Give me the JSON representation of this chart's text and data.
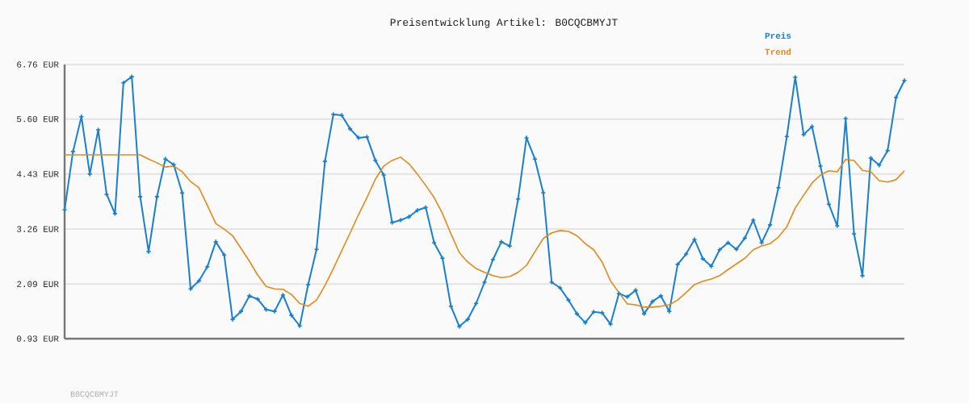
{
  "chart_data": {
    "type": "line",
    "title": "Preisentwicklung Artikel: B0CQCBMYJT",
    "categories": [
      null,
      null,
      null,
      null,
      null,
      null,
      null,
      null,
      null,
      null,
      null,
      null,
      null,
      null,
      null,
      null,
      null,
      null,
      null,
      null,
      null,
      null,
      null,
      null,
      null,
      null,
      null,
      null,
      null,
      null,
      null,
      null,
      null,
      null,
      null,
      null,
      null,
      null,
      null,
      null,
      null,
      null,
      null,
      null,
      null,
      null,
      null,
      null,
      null,
      null,
      null,
      null,
      null,
      null,
      null,
      null,
      null,
      null,
      null,
      null,
      null,
      null,
      null,
      null,
      null,
      null,
      null,
      null,
      null,
      null,
      null,
      null,
      null,
      null,
      null,
      null,
      null,
      null,
      null,
      null,
      null,
      null,
      null,
      null,
      null,
      null,
      null,
      null,
      null,
      null,
      null,
      null,
      null,
      null,
      null,
      null,
      null,
      null,
      null,
      null,
      null
    ],
    "series": [
      {
        "name": "Preis",
        "color": "#1a7fcc",
        "marker": "cross",
        "values": [
          3.67,
          4.91,
          5.65,
          4.43,
          5.37,
          4.0,
          3.59,
          6.37,
          6.5,
          3.95,
          2.78,
          3.95,
          4.75,
          4.63,
          4.03,
          1.99,
          2.16,
          2.46,
          2.99,
          2.71,
          1.34,
          1.51,
          1.84,
          1.77,
          1.55,
          1.51,
          1.86,
          1.43,
          1.2,
          2.08,
          2.83,
          4.7,
          5.7,
          5.68,
          5.39,
          5.2,
          5.22,
          4.72,
          4.41,
          3.4,
          3.45,
          3.52,
          3.66,
          3.72,
          2.97,
          2.64,
          1.62,
          1.19,
          1.34,
          1.68,
          2.13,
          2.61,
          2.99,
          2.9,
          3.9,
          5.2,
          4.75,
          4.03,
          2.13,
          2.01,
          1.75,
          1.46,
          1.27,
          1.5,
          1.48,
          1.24,
          1.89,
          1.82,
          1.96,
          1.46,
          1.72,
          1.84,
          1.51,
          2.51,
          2.73,
          3.04,
          2.63,
          2.47,
          2.82,
          2.97,
          2.83,
          3.07,
          3.45,
          2.97,
          3.35,
          4.14,
          5.23,
          6.49,
          5.27,
          5.44,
          4.6,
          3.79,
          3.33,
          5.61,
          3.16,
          2.27,
          4.77,
          4.62,
          4.93,
          6.06,
          6.42
        ]
      },
      {
        "name": "Trend",
        "color": "#e08a1e",
        "marker": "none",
        "values": [
          4.84,
          4.84,
          4.84,
          4.84,
          4.84,
          4.84,
          4.84,
          4.84,
          4.84,
          4.84,
          4.75,
          4.67,
          4.58,
          4.6,
          4.48,
          4.27,
          4.14,
          3.76,
          3.38,
          3.26,
          3.12,
          2.85,
          2.58,
          2.28,
          2.04,
          1.99,
          1.98,
          1.87,
          1.68,
          1.62,
          1.75,
          2.06,
          2.42,
          2.8,
          3.18,
          3.57,
          3.93,
          4.32,
          4.6,
          4.72,
          4.79,
          4.65,
          4.43,
          4.19,
          3.93,
          3.59,
          3.16,
          2.76,
          2.56,
          2.42,
          2.34,
          2.27,
          2.23,
          2.25,
          2.34,
          2.49,
          2.78,
          3.06,
          3.18,
          3.23,
          3.21,
          3.12,
          2.95,
          2.82,
          2.56,
          2.16,
          1.91,
          1.67,
          1.65,
          1.6,
          1.6,
          1.62,
          1.65,
          1.75,
          1.91,
          2.08,
          2.15,
          2.2,
          2.27,
          2.4,
          2.52,
          2.64,
          2.82,
          2.9,
          2.95,
          3.09,
          3.31,
          3.71,
          3.98,
          4.24,
          4.41,
          4.5,
          4.48,
          4.74,
          4.72,
          4.51,
          4.48,
          4.29,
          4.26,
          4.31,
          4.5
        ]
      }
    ],
    "ylim": [
      0.93,
      6.76
    ],
    "yticks": [
      {
        "value": 0.93,
        "label": "0.93 EUR"
      },
      {
        "value": 2.09,
        "label": "2.09 EUR"
      },
      {
        "value": 3.26,
        "label": "3.26 EUR"
      },
      {
        "value": 4.43,
        "label": "4.43 EUR"
      },
      {
        "value": 5.6,
        "label": "5.60 EUR"
      },
      {
        "value": 6.76,
        "label": "6.76 EUR"
      }
    ],
    "grid": "y",
    "legend": "top right",
    "annotations": [
      "B0CQCBMYJT"
    ]
  }
}
